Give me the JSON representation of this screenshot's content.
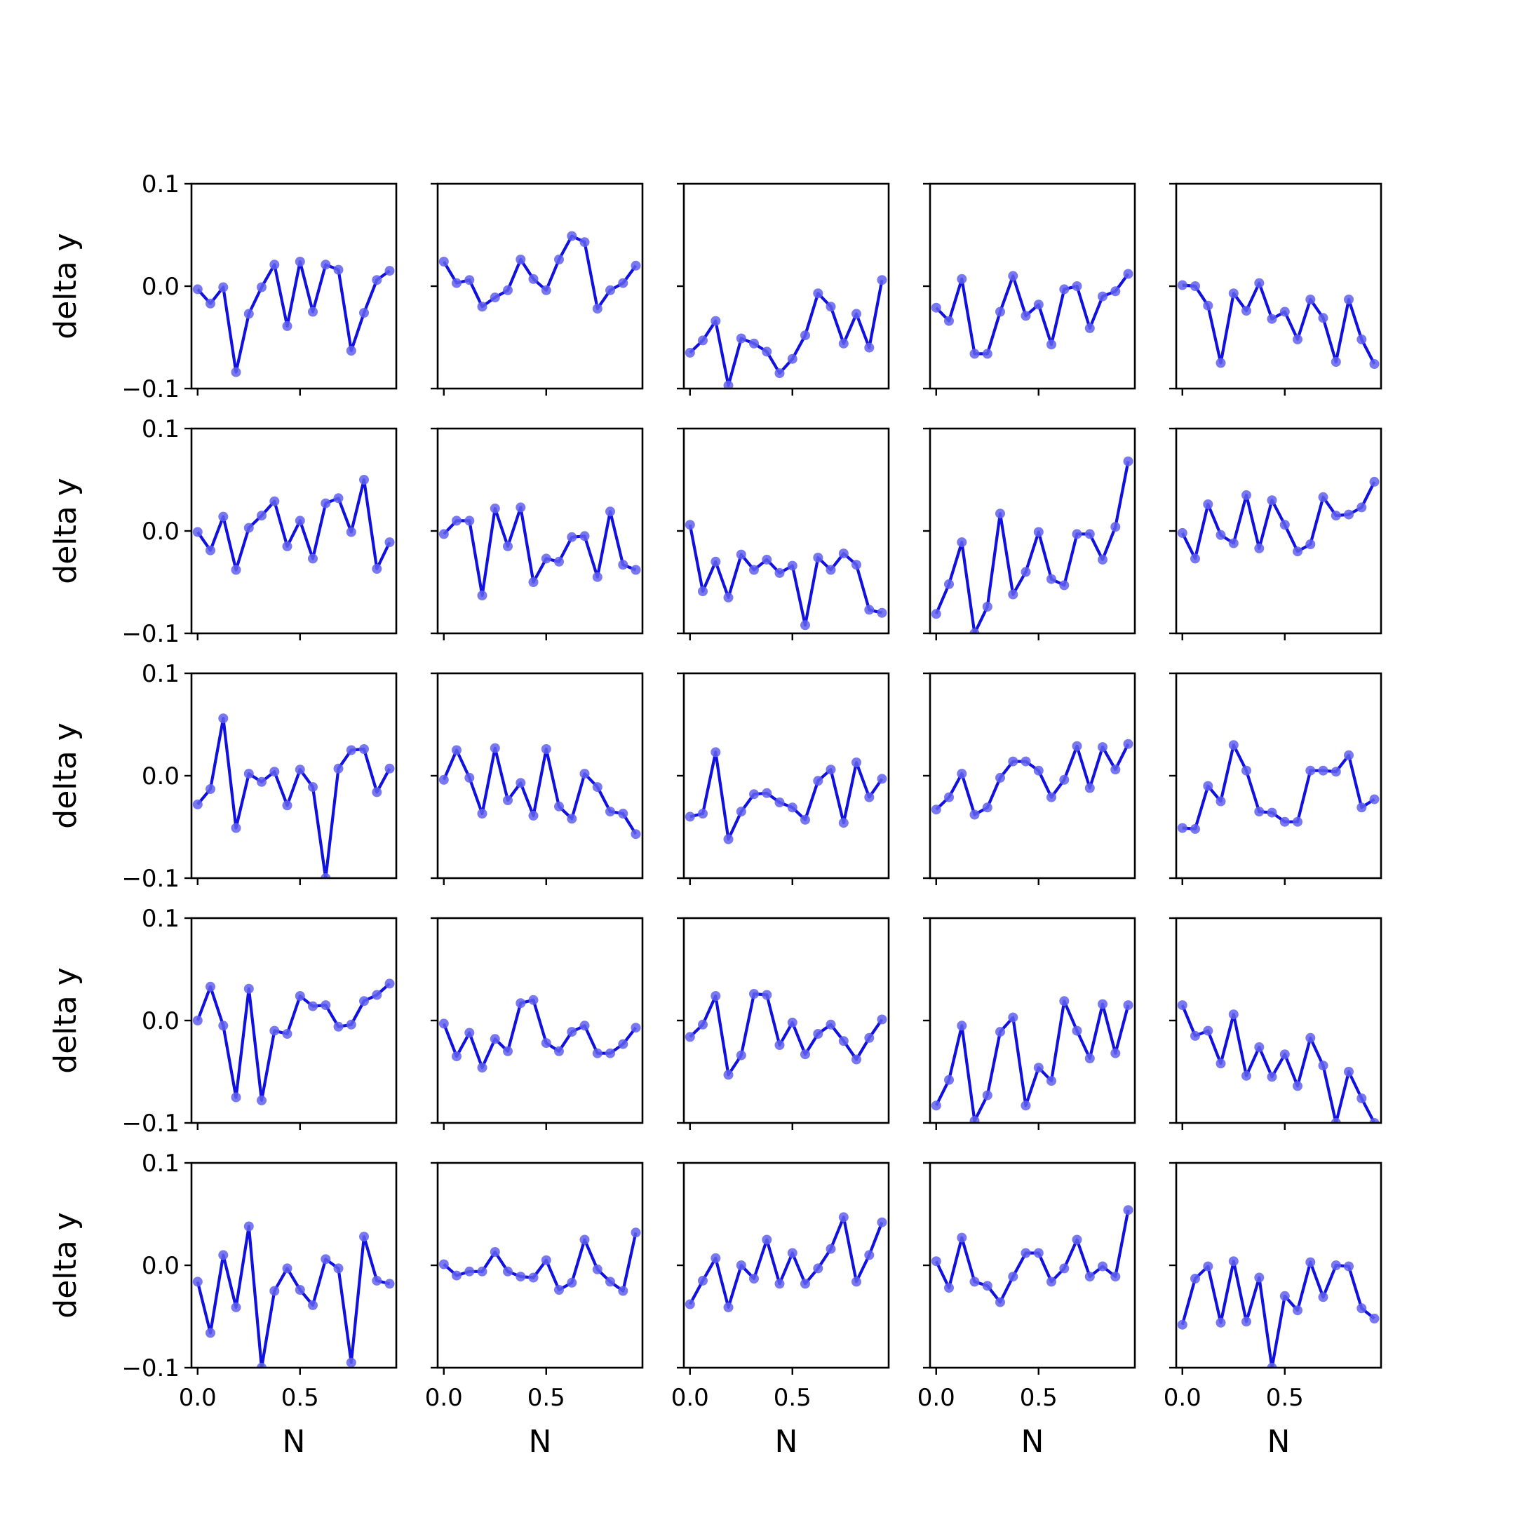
{
  "figure": {
    "rows": 5,
    "cols": 5,
    "line_color": "#1010e0",
    "marker_color": "#6060ee",
    "axis_color": "#000000",
    "background": "#ffffff"
  },
  "chart_data": {
    "type": "line",
    "layout": "5x5 small multiples, shared axes",
    "xlabel": "N",
    "ylabel": "delta y",
    "xlim": [
      -0.03,
      0.97
    ],
    "ylim": [
      -0.1,
      0.1
    ],
    "x_ticks": [
      0.0,
      0.5
    ],
    "x_tick_labels": [
      "0.0",
      "0.5"
    ],
    "y_ticks": [
      -0.1,
      0.0,
      0.1
    ],
    "y_tick_labels": [
      "−0.1",
      "0.0",
      "0.1"
    ],
    "grid": false,
    "legend": "none",
    "x": [
      0.0,
      0.0625,
      0.125,
      0.1875,
      0.25,
      0.3125,
      0.375,
      0.4375,
      0.5,
      0.5625,
      0.625,
      0.6875,
      0.75,
      0.8125,
      0.875,
      0.9375
    ],
    "panels": [
      {
        "row": 0,
        "col": 0,
        "values": [
          -0.003,
          -0.017,
          -0.001,
          -0.084,
          -0.027,
          -0.001,
          0.021,
          -0.039,
          0.024,
          -0.025,
          0.021,
          0.016,
          -0.063,
          -0.026,
          0.006,
          0.015
        ]
      },
      {
        "row": 0,
        "col": 1,
        "values": [
          0.024,
          0.003,
          0.006,
          -0.02,
          -0.011,
          -0.004,
          0.026,
          0.007,
          -0.004,
          0.026,
          0.049,
          0.043,
          -0.022,
          -0.004,
          0.003,
          0.02
        ]
      },
      {
        "row": 0,
        "col": 2,
        "values": [
          -0.065,
          -0.053,
          -0.034,
          -0.097,
          -0.051,
          -0.056,
          -0.064,
          -0.085,
          -0.071,
          -0.048,
          -0.007,
          -0.02,
          -0.056,
          -0.027,
          -0.06,
          0.006
        ]
      },
      {
        "row": 0,
        "col": 3,
        "values": [
          -0.021,
          -0.034,
          0.007,
          -0.066,
          -0.066,
          -0.025,
          0.01,
          -0.029,
          -0.018,
          -0.057,
          -0.003,
          0.0,
          -0.041,
          -0.01,
          -0.005,
          0.012
        ]
      },
      {
        "row": 0,
        "col": 4,
        "values": [
          0.001,
          0.0,
          -0.019,
          -0.075,
          -0.007,
          -0.024,
          0.003,
          -0.032,
          -0.025,
          -0.052,
          -0.013,
          -0.031,
          -0.074,
          -0.013,
          -0.052,
          -0.076
        ]
      },
      {
        "row": 1,
        "col": 0,
        "values": [
          -0.001,
          -0.019,
          0.014,
          -0.038,
          0.003,
          0.015,
          0.029,
          -0.015,
          0.01,
          -0.027,
          0.027,
          0.032,
          -0.001,
          0.05,
          -0.037,
          -0.011
        ]
      },
      {
        "row": 1,
        "col": 1,
        "values": [
          -0.003,
          0.01,
          0.01,
          -0.063,
          0.022,
          -0.015,
          0.023,
          -0.05,
          -0.027,
          -0.03,
          -0.006,
          -0.005,
          -0.045,
          0.019,
          -0.033,
          -0.038
        ]
      },
      {
        "row": 1,
        "col": 2,
        "values": [
          0.006,
          -0.059,
          -0.03,
          -0.065,
          -0.023,
          -0.038,
          -0.028,
          -0.041,
          -0.034,
          -0.092,
          -0.026,
          -0.038,
          -0.022,
          -0.033,
          -0.077,
          -0.08
        ]
      },
      {
        "row": 1,
        "col": 3,
        "values": [
          -0.081,
          -0.052,
          -0.011,
          -0.1,
          -0.074,
          0.017,
          -0.062,
          -0.04,
          -0.001,
          -0.047,
          -0.053,
          -0.003,
          -0.003,
          -0.028,
          0.004,
          0.068
        ]
      },
      {
        "row": 1,
        "col": 4,
        "values": [
          -0.002,
          -0.027,
          0.026,
          -0.004,
          -0.012,
          0.035,
          -0.017,
          0.03,
          0.006,
          -0.02,
          -0.013,
          0.033,
          0.015,
          0.016,
          0.023,
          0.048
        ]
      },
      {
        "row": 2,
        "col": 0,
        "values": [
          -0.028,
          -0.013,
          0.056,
          -0.051,
          0.002,
          -0.006,
          0.004,
          -0.029,
          0.006,
          -0.011,
          -0.1,
          0.007,
          0.025,
          0.026,
          -0.016,
          0.007
        ]
      },
      {
        "row": 2,
        "col": 1,
        "values": [
          -0.004,
          0.025,
          -0.002,
          -0.037,
          0.027,
          -0.024,
          -0.007,
          -0.039,
          0.026,
          -0.03,
          -0.042,
          0.002,
          -0.011,
          -0.035,
          -0.037,
          -0.057
        ]
      },
      {
        "row": 2,
        "col": 2,
        "values": [
          -0.04,
          -0.037,
          0.023,
          -0.062,
          -0.035,
          -0.018,
          -0.017,
          -0.026,
          -0.031,
          -0.043,
          -0.005,
          0.006,
          -0.046,
          0.013,
          -0.021,
          -0.003
        ]
      },
      {
        "row": 2,
        "col": 3,
        "values": [
          -0.033,
          -0.021,
          0.002,
          -0.038,
          -0.031,
          -0.002,
          0.014,
          0.014,
          0.005,
          -0.021,
          -0.004,
          0.029,
          -0.012,
          0.028,
          0.006,
          0.031
        ]
      },
      {
        "row": 2,
        "col": 4,
        "values": [
          -0.051,
          -0.052,
          -0.01,
          -0.025,
          0.03,
          0.005,
          -0.035,
          -0.036,
          -0.045,
          -0.045,
          0.005,
          0.005,
          0.004,
          0.02,
          -0.031,
          -0.023
        ]
      },
      {
        "row": 3,
        "col": 0,
        "values": [
          0.0,
          0.033,
          -0.005,
          -0.075,
          0.031,
          -0.078,
          -0.01,
          -0.013,
          0.024,
          0.014,
          0.015,
          -0.006,
          -0.004,
          0.019,
          0.025,
          0.036
        ]
      },
      {
        "row": 3,
        "col": 1,
        "values": [
          -0.003,
          -0.035,
          -0.012,
          -0.046,
          -0.018,
          -0.03,
          0.017,
          0.02,
          -0.022,
          -0.03,
          -0.011,
          -0.005,
          -0.032,
          -0.032,
          -0.023,
          -0.007
        ]
      },
      {
        "row": 3,
        "col": 2,
        "values": [
          -0.016,
          -0.004,
          0.024,
          -0.053,
          -0.034,
          0.026,
          0.025,
          -0.024,
          -0.002,
          -0.033,
          -0.013,
          -0.004,
          -0.02,
          -0.038,
          -0.017,
          0.001
        ]
      },
      {
        "row": 3,
        "col": 3,
        "values": [
          -0.083,
          -0.058,
          -0.005,
          -0.098,
          -0.073,
          -0.011,
          0.003,
          -0.083,
          -0.046,
          -0.059,
          0.019,
          -0.01,
          -0.037,
          0.016,
          -0.032,
          0.015
        ]
      },
      {
        "row": 3,
        "col": 4,
        "values": [
          0.015,
          -0.015,
          -0.01,
          -0.042,
          0.006,
          -0.054,
          -0.026,
          -0.055,
          -0.033,
          -0.064,
          -0.017,
          -0.044,
          -0.1,
          -0.05,
          -0.076,
          -0.1
        ]
      },
      {
        "row": 4,
        "col": 0,
        "values": [
          -0.016,
          -0.066,
          0.01,
          -0.041,
          0.038,
          -0.1,
          -0.025,
          -0.003,
          -0.024,
          -0.039,
          0.006,
          -0.003,
          -0.095,
          0.028,
          -0.015,
          -0.018
        ]
      },
      {
        "row": 4,
        "col": 1,
        "values": [
          0.001,
          -0.01,
          -0.006,
          -0.006,
          0.013,
          -0.006,
          -0.011,
          -0.012,
          0.005,
          -0.024,
          -0.017,
          0.025,
          -0.004,
          -0.016,
          -0.025,
          0.032
        ]
      },
      {
        "row": 4,
        "col": 2,
        "values": [
          -0.038,
          -0.015,
          0.007,
          -0.041,
          0.0,
          -0.013,
          0.025,
          -0.018,
          0.012,
          -0.018,
          -0.003,
          0.016,
          0.047,
          -0.016,
          0.01,
          0.042
        ]
      },
      {
        "row": 4,
        "col": 3,
        "values": [
          0.004,
          -0.022,
          0.027,
          -0.016,
          -0.02,
          -0.036,
          -0.011,
          0.012,
          0.012,
          -0.016,
          -0.003,
          0.025,
          -0.011,
          -0.001,
          -0.011,
          0.054
        ]
      },
      {
        "row": 4,
        "col": 4,
        "values": [
          -0.058,
          -0.013,
          -0.001,
          -0.056,
          0.004,
          -0.055,
          -0.012,
          -0.1,
          -0.03,
          -0.044,
          0.003,
          -0.031,
          0.0,
          -0.001,
          -0.042,
          -0.052
        ]
      }
    ]
  }
}
